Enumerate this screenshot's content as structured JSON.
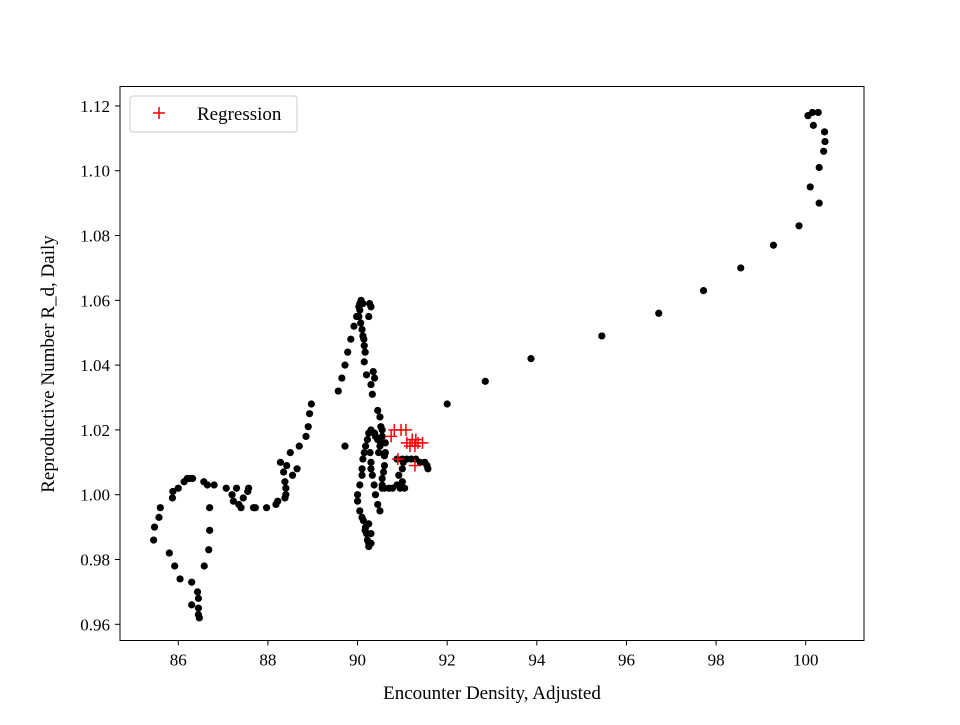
{
  "chart_data": {
    "type": "scatter",
    "xlabel": "Encounter Density, Adjusted",
    "ylabel": "Reproductive Number R_d, Daily",
    "xlim": [
      84.7,
      101.3
    ],
    "ylim": [
      0.955,
      1.126
    ],
    "xticks": [
      86,
      88,
      90,
      92,
      94,
      96,
      98,
      100
    ],
    "yticks": [
      0.96,
      0.98,
      1.0,
      1.02,
      1.04,
      1.06,
      1.08,
      1.1,
      1.12
    ],
    "grid": false,
    "legend_position": "top-left",
    "series": [
      {
        "name": "",
        "marker": "circle",
        "color": "#000000",
        "points": [
          [
            85.45,
            0.986
          ],
          [
            85.47,
            0.99
          ],
          [
            85.57,
            0.993
          ],
          [
            85.6,
            0.996
          ],
          [
            85.8,
            0.982
          ],
          [
            85.92,
            0.978
          ],
          [
            86.04,
            0.974
          ],
          [
            85.87,
            0.999
          ],
          [
            85.88,
            1.001
          ],
          [
            86.0,
            1.002
          ],
          [
            86.13,
            1.004
          ],
          [
            86.2,
            1.005
          ],
          [
            86.25,
            1.005
          ],
          [
            86.32,
            1.005
          ],
          [
            86.3,
            0.973
          ],
          [
            86.3,
            0.966
          ],
          [
            86.43,
            0.97
          ],
          [
            86.45,
            0.968
          ],
          [
            86.45,
            0.965
          ],
          [
            86.45,
            0.963
          ],
          [
            86.47,
            0.962
          ],
          [
            86.58,
            0.978
          ],
          [
            86.57,
            1.004
          ],
          [
            86.65,
            1.003
          ],
          [
            86.8,
            1.003
          ],
          [
            86.7,
            0.996
          ],
          [
            86.7,
            0.989
          ],
          [
            86.68,
            0.983
          ],
          [
            87.07,
            1.002
          ],
          [
            87.2,
            1.0
          ],
          [
            87.23,
            0.998
          ],
          [
            87.3,
            1.002
          ],
          [
            87.35,
            0.997
          ],
          [
            87.4,
            0.996
          ],
          [
            87.45,
            0.999
          ],
          [
            87.55,
            1.001
          ],
          [
            87.57,
            1.002
          ],
          [
            87.68,
            0.996
          ],
          [
            87.72,
            0.996
          ],
          [
            87.97,
            0.996
          ],
          [
            88.18,
            0.997
          ],
          [
            88.22,
            0.998
          ],
          [
            88.38,
            0.999
          ],
          [
            88.4,
            1.0
          ],
          [
            88.4,
            1.002
          ],
          [
            88.38,
            1.004
          ],
          [
            88.35,
            1.007
          ],
          [
            88.28,
            1.01
          ],
          [
            88.42,
            1.009
          ],
          [
            88.5,
            1.013
          ],
          [
            88.55,
            1.006
          ],
          [
            88.65,
            1.008
          ],
          [
            88.7,
            1.015
          ],
          [
            88.85,
            1.018
          ],
          [
            88.9,
            1.021
          ],
          [
            88.93,
            1.025
          ],
          [
            88.97,
            1.028
          ],
          [
            89.57,
            1.032
          ],
          [
            89.65,
            1.036
          ],
          [
            89.72,
            1.04
          ],
          [
            89.78,
            1.044
          ],
          [
            89.85,
            1.048
          ],
          [
            89.92,
            1.052
          ],
          [
            89.98,
            1.055
          ],
          [
            90.03,
            1.058
          ],
          [
            90.05,
            1.059
          ],
          [
            90.08,
            1.06
          ],
          [
            90.12,
            1.059
          ],
          [
            90.05,
            1.057
          ],
          [
            90.03,
            1.055
          ],
          [
            90.07,
            1.053
          ],
          [
            90.1,
            1.051
          ],
          [
            90.12,
            1.049
          ],
          [
            90.14,
            1.048
          ],
          [
            90.15,
            1.046
          ],
          [
            90.17,
            1.044
          ],
          [
            90.15,
            1.041
          ],
          [
            90.2,
            1.037
          ],
          [
            90.25,
            1.055
          ],
          [
            90.27,
            1.059
          ],
          [
            90.3,
            1.058
          ],
          [
            90.3,
            1.034
          ],
          [
            90.33,
            1.031
          ],
          [
            90.35,
            1.038
          ],
          [
            90.38,
            1.036
          ],
          [
            89.72,
            1.015
          ],
          [
            90.0,
            1.0
          ],
          [
            90.0,
            0.998
          ],
          [
            90.05,
            0.995
          ],
          [
            90.1,
            0.993
          ],
          [
            90.13,
            0.992
          ],
          [
            90.17,
            0.989
          ],
          [
            90.2,
            0.988
          ],
          [
            90.22,
            0.986
          ],
          [
            90.25,
            0.985
          ],
          [
            90.25,
            0.984
          ],
          [
            90.3,
            0.985
          ],
          [
            90.18,
            0.99
          ],
          [
            90.25,
            0.991
          ],
          [
            90.3,
            0.988
          ],
          [
            90.05,
            1.003
          ],
          [
            90.1,
            1.006
          ],
          [
            90.1,
            1.008
          ],
          [
            90.12,
            1.011
          ],
          [
            90.15,
            1.013
          ],
          [
            90.18,
            1.015
          ],
          [
            90.22,
            1.017
          ],
          [
            90.25,
            1.019
          ],
          [
            90.3,
            1.02
          ],
          [
            90.38,
            1.019
          ],
          [
            90.28,
            1.013
          ],
          [
            90.3,
            1.01
          ],
          [
            90.3,
            1.008
          ],
          [
            90.33,
            1.006
          ],
          [
            90.37,
            1.003
          ],
          [
            90.4,
            1.0
          ],
          [
            90.45,
            0.997
          ],
          [
            90.5,
            0.995
          ],
          [
            90.4,
            1.018
          ],
          [
            90.45,
            1.017
          ],
          [
            90.47,
            1.013
          ],
          [
            90.5,
            1.015
          ],
          [
            90.52,
            1.016
          ],
          [
            90.55,
            1.018
          ],
          [
            90.55,
            1.02
          ],
          [
            90.5,
            1.024
          ],
          [
            90.45,
            1.026
          ],
          [
            90.52,
            1.021
          ],
          [
            90.55,
            1.003
          ],
          [
            90.55,
            1.002
          ],
          [
            90.6,
            1.002
          ],
          [
            90.55,
            1.005
          ],
          [
            90.58,
            1.007
          ],
          [
            90.6,
            1.009
          ],
          [
            90.6,
            1.012
          ],
          [
            90.62,
            1.013
          ],
          [
            90.62,
            1.016
          ],
          [
            90.7,
            1.002
          ],
          [
            90.78,
            1.002
          ],
          [
            90.88,
            1.003
          ],
          [
            90.95,
            1.002
          ],
          [
            91.0,
            1.004
          ],
          [
            91.05,
            1.002
          ],
          [
            90.92,
            1.006
          ],
          [
            91.0,
            1.008
          ],
          [
            91.02,
            1.01
          ],
          [
            90.88,
            1.011
          ],
          [
            91.0,
            1.011
          ],
          [
            91.1,
            1.011
          ],
          [
            91.2,
            1.011
          ],
          [
            91.3,
            1.011
          ],
          [
            91.4,
            1.01
          ],
          [
            91.5,
            1.01
          ],
          [
            91.55,
            1.009
          ],
          [
            91.57,
            1.008
          ],
          [
            92.0,
            1.028
          ],
          [
            92.85,
            1.035
          ],
          [
            93.87,
            1.042
          ],
          [
            95.45,
            1.049
          ],
          [
            96.72,
            1.056
          ],
          [
            97.72,
            1.063
          ],
          [
            98.55,
            1.07
          ],
          [
            99.28,
            1.077
          ],
          [
            99.85,
            1.083
          ],
          [
            100.1,
            1.095
          ],
          [
            100.3,
            1.09
          ],
          [
            100.3,
            1.101
          ],
          [
            100.4,
            1.106
          ],
          [
            100.43,
            1.109
          ],
          [
            100.42,
            1.112
          ],
          [
            100.05,
            1.117
          ],
          [
            100.15,
            1.118
          ],
          [
            100.28,
            1.118
          ],
          [
            100.17,
            1.114
          ]
        ]
      },
      {
        "name": "Regression",
        "marker": "plus",
        "color": "#ff0000",
        "points": [
          [
            90.75,
            1.018
          ],
          [
            90.82,
            1.02
          ],
          [
            90.97,
            1.02
          ],
          [
            91.08,
            1.02
          ],
          [
            91.1,
            1.016
          ],
          [
            91.17,
            1.015
          ],
          [
            91.22,
            1.017
          ],
          [
            91.28,
            1.015
          ],
          [
            91.3,
            1.017
          ],
          [
            91.35,
            1.016
          ],
          [
            91.45,
            1.016
          ],
          [
            90.9,
            1.011
          ],
          [
            91.28,
            1.009
          ]
        ]
      }
    ]
  }
}
